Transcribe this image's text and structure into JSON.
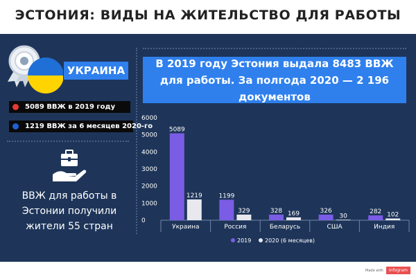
{
  "title": "ЭСТОНИЯ: ВИДЫ НА ЖИТЕЛЬСТВО ДЛЯ РАБОТЫ",
  "left_panel": {
    "medal_icon": "medal-ukraine-flag-icon",
    "country": "УКРАИНА",
    "stat_2019": "5089 ВВЖ в 2019 году",
    "stat_2020": "1219 ВВЖ за 6 месяцев 2020-го",
    "stat_2019_dot_color": "#e53935",
    "stat_2020_dot_color": "#1e60d6",
    "case_icon": "briefcase-in-hand-icon",
    "summary": "ВВЖ для работы в Эстонии получили жители 55 стран"
  },
  "headline": "В 2019 году Эстония выдала 8483 ВВЖ для работы. За полгода 2020 — 2 196 документов",
  "chart_data": {
    "type": "bar",
    "categories": [
      "Украина",
      "Россия",
      "Беларусь",
      "США",
      "Индия"
    ],
    "series": [
      {
        "name": "2019",
        "values": [
          5089,
          1199,
          328,
          326,
          282
        ],
        "color": "#7b5ce5"
      },
      {
        "name": "2020 (6 месяцев)",
        "values": [
          1219,
          329,
          169,
          30,
          102
        ],
        "color": "#e8e8ee"
      }
    ],
    "ylim": [
      0,
      6000
    ],
    "yticks": [
      0,
      1000,
      2000,
      3000,
      4000,
      5000,
      6000
    ],
    "grid": false,
    "legend": "bottom"
  },
  "footer": {
    "made_with": "Made with",
    "brand": "Infogram"
  },
  "colors": {
    "panel": "#1e3559",
    "accent": "#2f80ed",
    "title": "#222222"
  }
}
